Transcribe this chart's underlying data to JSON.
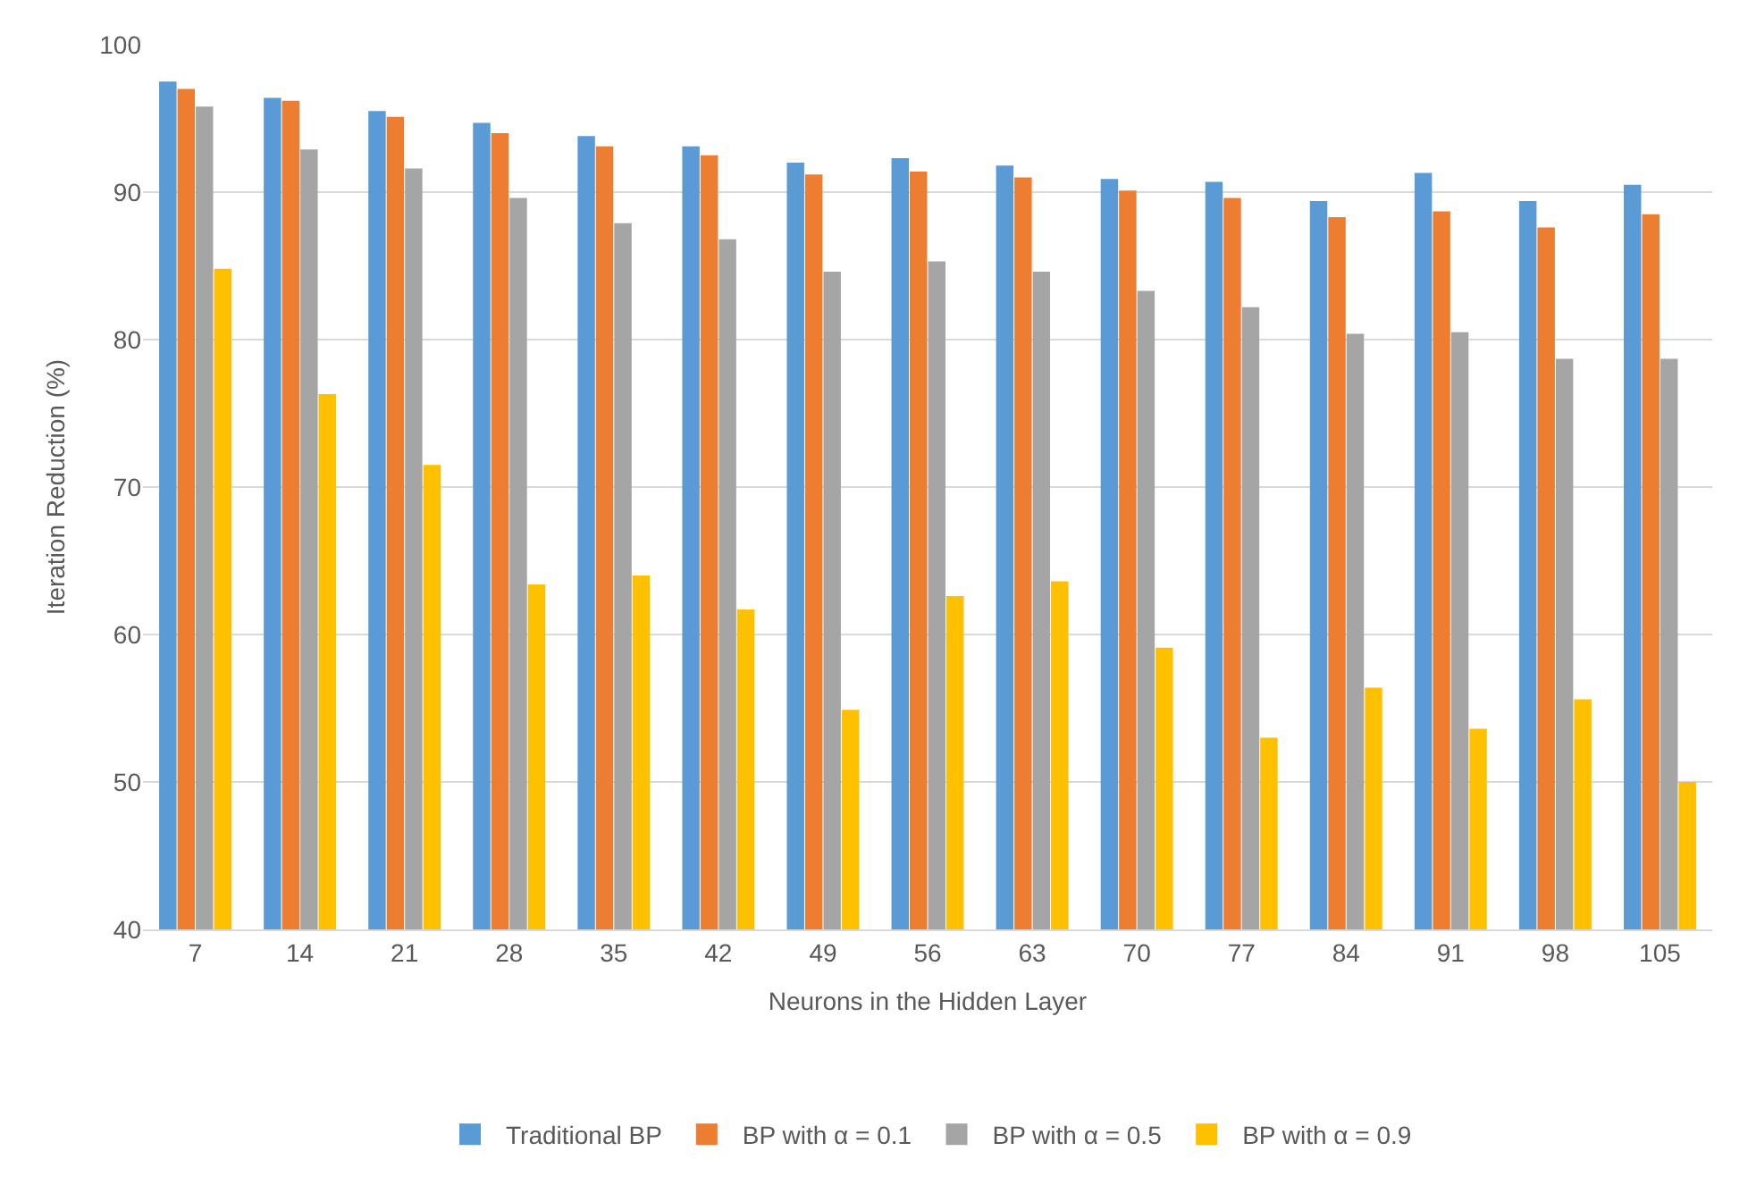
{
  "chart_data": {
    "type": "bar",
    "xlabel": "Neurons in the Hidden Layer",
    "ylabel": "Iteration Reduction (%)",
    "categories": [
      "7",
      "14",
      "21",
      "28",
      "35",
      "42",
      "49",
      "56",
      "63",
      "70",
      "77",
      "84",
      "91",
      "98",
      "105"
    ],
    "series": [
      {
        "name": "Traditional BP",
        "color": "#5b9bd5",
        "values": [
          97.5,
          96.4,
          95.5,
          94.7,
          93.8,
          93.1,
          92.0,
          92.3,
          91.8,
          90.9,
          90.7,
          89.4,
          91.3,
          89.4,
          90.5
        ]
      },
      {
        "name": "BP with α = 0.1",
        "color": "#ed7d31",
        "values": [
          97.0,
          96.2,
          95.1,
          94.0,
          93.1,
          92.5,
          91.2,
          91.4,
          91.0,
          90.1,
          89.6,
          88.3,
          88.7,
          87.6,
          88.5
        ]
      },
      {
        "name": "BP with α = 0.5",
        "color": "#a5a5a5",
        "values": [
          95.8,
          92.9,
          91.6,
          89.6,
          87.9,
          86.8,
          84.6,
          85.3,
          84.6,
          83.3,
          82.2,
          80.4,
          80.5,
          78.7,
          78.7
        ]
      },
      {
        "name": "BP with α = 0.9",
        "color": "#ffc000",
        "values": [
          84.8,
          76.3,
          71.5,
          63.4,
          64.0,
          61.7,
          54.9,
          62.6,
          63.6,
          59.1,
          53.0,
          56.4,
          53.6,
          55.6,
          50.0
        ]
      }
    ],
    "ylim": [
      40,
      100
    ],
    "yticks": [
      40,
      50,
      60,
      70,
      80,
      90,
      100
    ],
    "grid": "y",
    "legend": "bottom"
  }
}
